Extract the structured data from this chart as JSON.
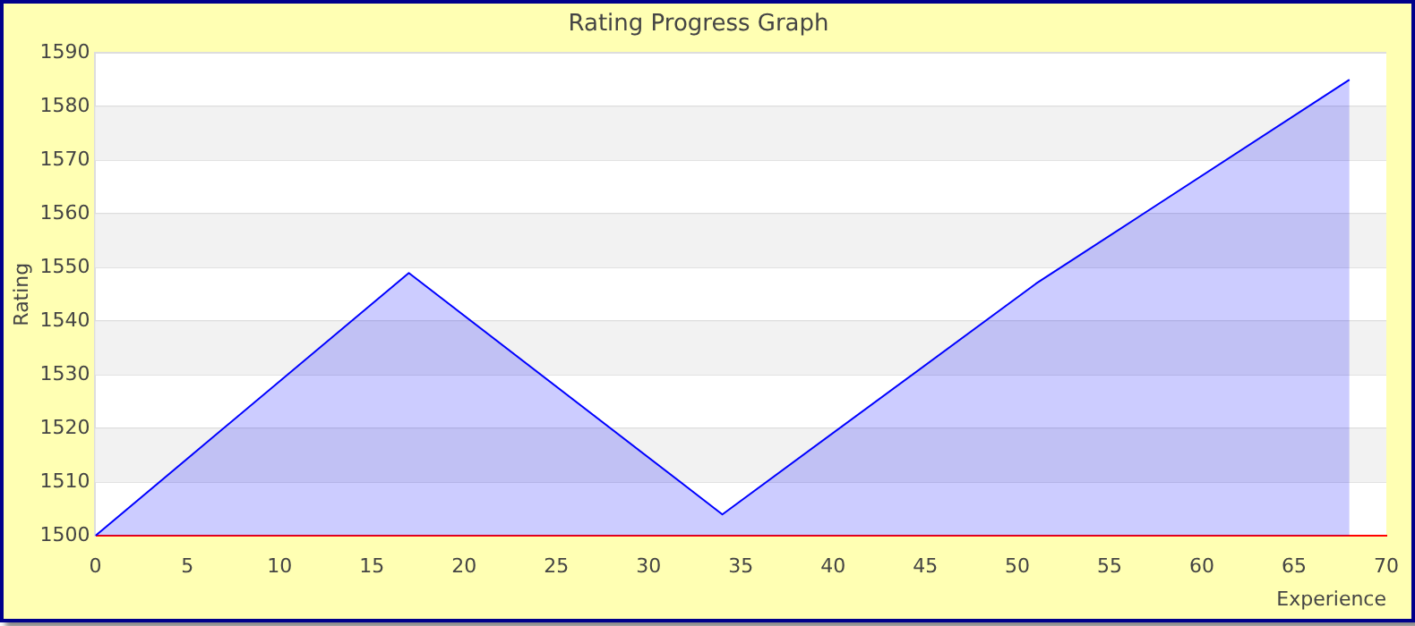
{
  "chart_data": {
    "type": "area",
    "title": "Rating Progress Graph",
    "xlabel": "Experience",
    "ylabel": "Rating",
    "x": [
      0,
      17,
      34,
      51,
      68
    ],
    "series": [
      {
        "color": "#0000ff",
        "values": [
          1500,
          1549,
          1504,
          1547,
          1585
        ]
      }
    ],
    "xlim": [
      0,
      70
    ],
    "xticks": [
      0,
      5,
      10,
      15,
      20,
      25,
      30,
      35,
      40,
      45,
      50,
      55,
      60,
      65,
      70
    ],
    "ylim": [
      1500,
      1590
    ],
    "yticks": [
      1500,
      1510,
      1520,
      1530,
      1540,
      1550,
      1560,
      1570,
      1580,
      1590
    ],
    "grid": "y",
    "legend": false
  }
}
